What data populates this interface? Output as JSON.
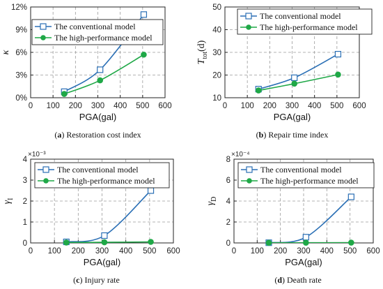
{
  "chart_data": [
    {
      "id": "a",
      "type": "line",
      "caption": {
        "label": "(a)",
        "text": "Restoration cost index"
      },
      "xlabel": "PGA(gal)",
      "ylabel": "κ",
      "xlim": [
        0,
        600
      ],
      "ylim": [
        0,
        12
      ],
      "xticks": [
        "0",
        "100",
        "200",
        "300",
        "400",
        "500",
        "600"
      ],
      "yticks": [
        "0%",
        "3%",
        "6%",
        "9%",
        "12%"
      ],
      "exponent": "",
      "grid": true,
      "legend": "top-left",
      "series": [
        {
          "name": "The conventional model",
          "marker": "square-open",
          "color": "#2a6fb5",
          "x": [
            150,
            310,
            505
          ],
          "y": [
            0.8,
            3.7,
            11.0
          ]
        },
        {
          "name": "The high-performance model",
          "marker": "circle-filled",
          "color": "#1fa847",
          "x": [
            150,
            310,
            505
          ],
          "y": [
            0.5,
            2.3,
            5.7
          ]
        }
      ]
    },
    {
      "id": "b",
      "type": "line",
      "caption": {
        "label": "(b)",
        "text": "Repair time index"
      },
      "xlabel": "PGA(gal)",
      "ylabel": "T",
      "ylabel_sub": "tot",
      "ylabel_tail": "(d)",
      "xlim": [
        0,
        600
      ],
      "ylim": [
        10,
        50
      ],
      "xticks": [
        "0",
        "100",
        "200",
        "300",
        "400",
        "500",
        "600"
      ],
      "yticks": [
        "10",
        "20",
        "30",
        "40",
        "50"
      ],
      "exponent": "",
      "grid": true,
      "legend": "top",
      "series": [
        {
          "name": "The conventional model",
          "marker": "square-open",
          "color": "#2a6fb5",
          "x": [
            150,
            310,
            505
          ],
          "y": [
            13.8,
            18.8,
            29.2
          ]
        },
        {
          "name": "The high-performance model",
          "marker": "circle-filled",
          "color": "#1fa847",
          "x": [
            150,
            310,
            505
          ],
          "y": [
            13.2,
            16.2,
            20.2
          ]
        }
      ]
    },
    {
      "id": "c",
      "type": "line",
      "caption": {
        "label": "(c)",
        "text": "Injury rate"
      },
      "xlabel": "PGA(gal)",
      "ylabel": "γ",
      "ylabel_sub": "I",
      "ylabel_tail": "",
      "xlim": [
        0,
        600
      ],
      "ylim": [
        0,
        4
      ],
      "xticks": [
        "0",
        "100",
        "200",
        "300",
        "400",
        "500",
        "600"
      ],
      "yticks": [
        "0",
        "1",
        "2",
        "3",
        "4"
      ],
      "exponent": "×10⁻³",
      "grid": true,
      "legend": "top",
      "series": [
        {
          "name": "The conventional model",
          "marker": "square-open",
          "color": "#2a6fb5",
          "x": [
            150,
            310,
            505
          ],
          "y": [
            0.05,
            0.35,
            2.5
          ]
        },
        {
          "name": "The high-performance model",
          "marker": "circle-filled",
          "color": "#1fa847",
          "x": [
            150,
            310,
            505
          ],
          "y": [
            0.02,
            0.03,
            0.05
          ]
        }
      ]
    },
    {
      "id": "d",
      "type": "line",
      "caption": {
        "label": "(d)",
        "text": "Death rate"
      },
      "xlabel": "PGA(gal)",
      "ylabel": "γ",
      "ylabel_sub": "D",
      "ylabel_tail": "",
      "xlim": [
        0,
        600
      ],
      "ylim": [
        0,
        8
      ],
      "xticks": [
        "0",
        "100",
        "200",
        "300",
        "400",
        "500",
        "600"
      ],
      "yticks": [
        "0",
        "2",
        "4",
        "6",
        "8"
      ],
      "exponent": "×10⁻⁴",
      "grid": true,
      "legend": "top",
      "series": [
        {
          "name": "The conventional model",
          "marker": "square-open",
          "color": "#2a6fb5",
          "x": [
            150,
            310,
            505
          ],
          "y": [
            0.02,
            0.55,
            4.4
          ]
        },
        {
          "name": "The high-performance model",
          "marker": "circle-filled",
          "color": "#1fa847",
          "x": [
            150,
            310,
            505
          ],
          "y": [
            0.01,
            0.02,
            0.03
          ]
        }
      ]
    }
  ]
}
